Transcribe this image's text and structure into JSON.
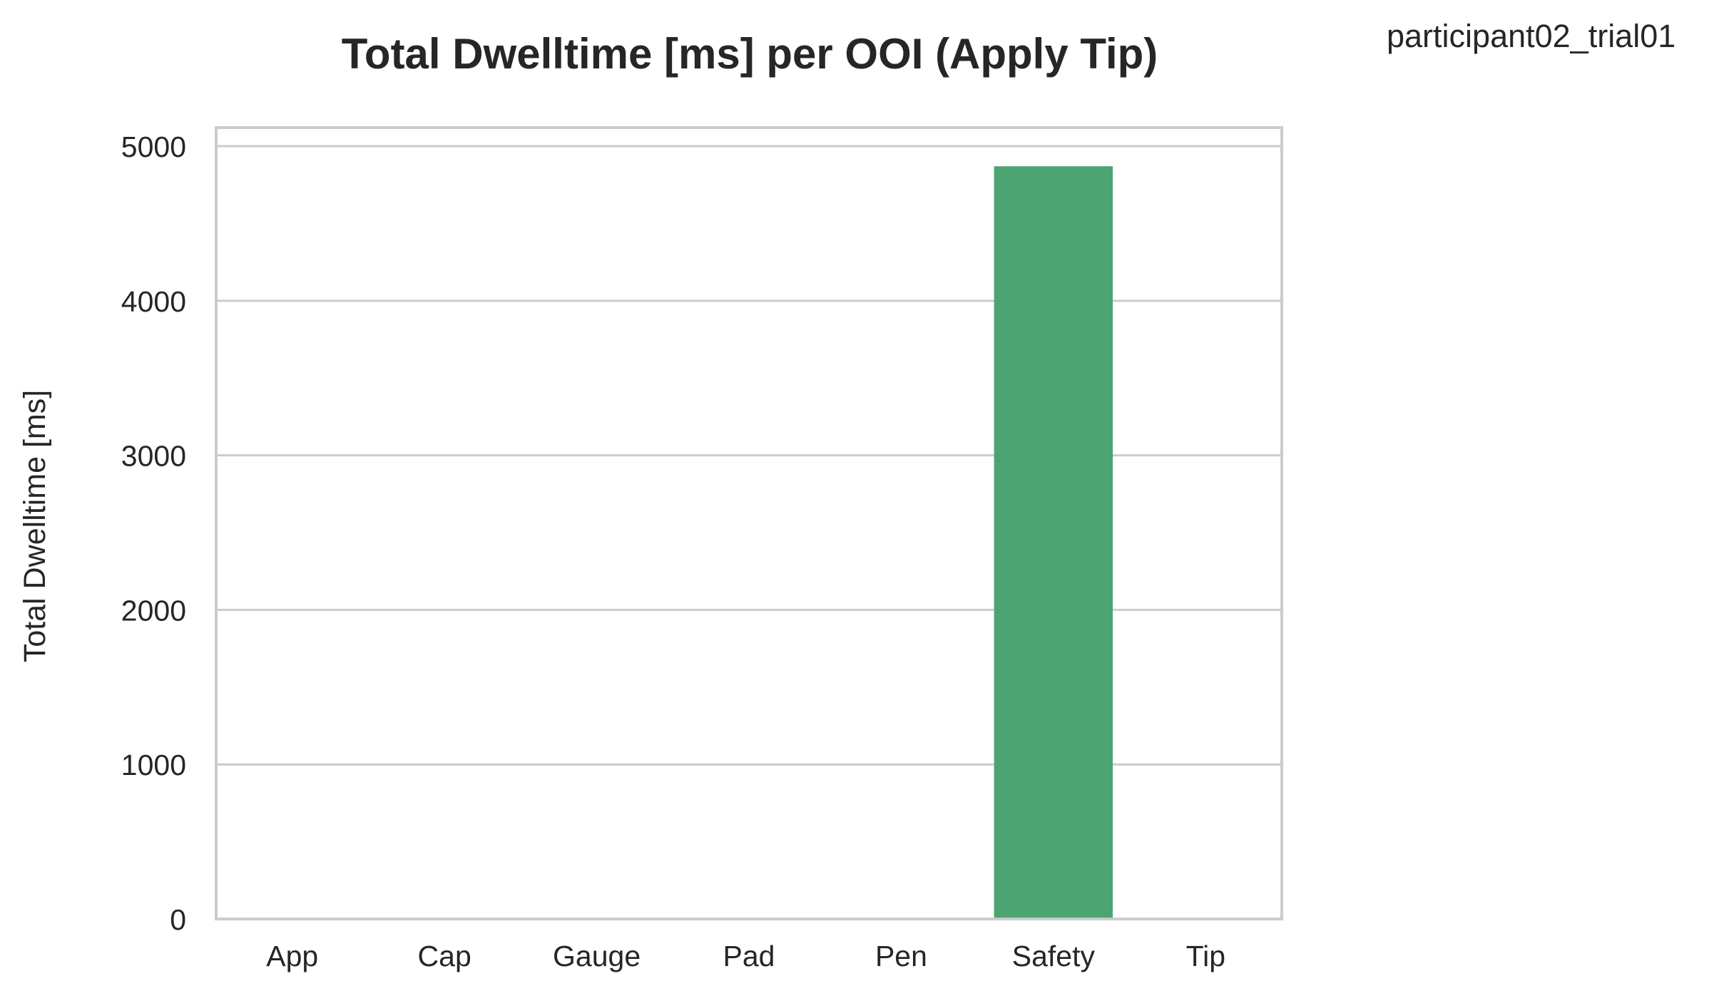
{
  "chart_data": {
    "type": "bar",
    "title": "Total Dwelltime [ms] per OOI (Apply Tip)",
    "annotation": "participant02_trial01",
    "xlabel": "",
    "ylabel": "Total Dwelltime [ms]",
    "categories": [
      "App",
      "Cap",
      "Gauge",
      "Pad",
      "Pen",
      "Safety",
      "Tip"
    ],
    "values": [
      0,
      0,
      0,
      0,
      0,
      4870,
      0
    ],
    "ylim": [
      0,
      5120
    ],
    "yticks": [
      0,
      1000,
      2000,
      3000,
      4000,
      5000
    ],
    "grid": true,
    "bar_color": "#4ca472",
    "grid_color": "#cccccc",
    "frame_color": "#cccccc"
  }
}
